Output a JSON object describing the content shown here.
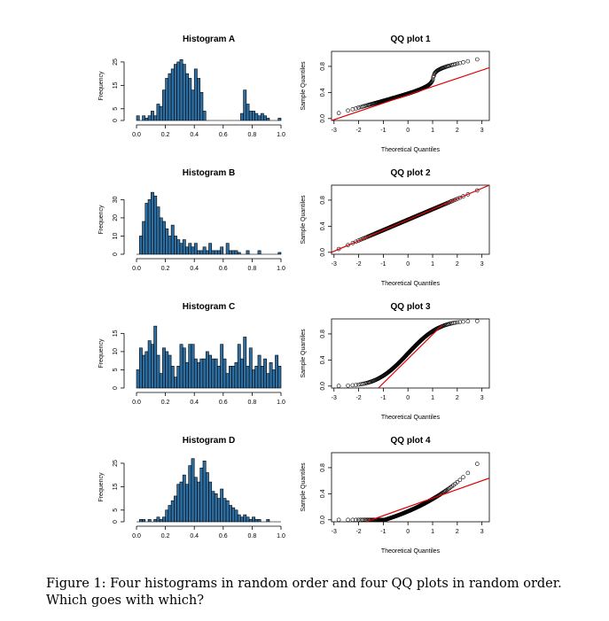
{
  "chart_data": [
    {
      "type": "bar",
      "title": "Histogram A",
      "ylabel": "Frequency",
      "xlim": [
        0,
        1
      ],
      "ylim": [
        0,
        28
      ],
      "xticks": [
        0.0,
        0.2,
        0.4,
        0.6,
        0.8,
        1.0
      ],
      "yticks": [
        0,
        5,
        15,
        25
      ],
      "bin_width": 0.02,
      "values": [
        2,
        0,
        2,
        1,
        2,
        4,
        2,
        7,
        6,
        13,
        18,
        20,
        22,
        24,
        25,
        26,
        24,
        20,
        18,
        13,
        22,
        18,
        12,
        4,
        0,
        0,
        0,
        0,
        0,
        0,
        0,
        0,
        0,
        0,
        0,
        0,
        3,
        13,
        7,
        4,
        4,
        3,
        2,
        3,
        2,
        1,
        0,
        0,
        0,
        1
      ]
    },
    {
      "type": "scatter",
      "title": "QQ plot 1",
      "xlabel": "Theoretical Quantiles",
      "ylabel": "Sample Quantiles",
      "xlim": [
        -3.1,
        3.3
      ],
      "ylim": [
        -0.03,
        1.03
      ],
      "xticks": [
        -3,
        -2,
        -1,
        0,
        1,
        2,
        3
      ],
      "yticks": [
        0.0,
        0.4,
        0.8
      ],
      "ref_line": [
        [
          -3.1,
          -0.03
        ],
        [
          3.3,
          0.78
        ]
      ],
      "distribution": "bimodal"
    },
    {
      "type": "bar",
      "title": "Histogram B",
      "ylabel": "Frequency",
      "xlim": [
        0,
        1
      ],
      "ylim": [
        0,
        36
      ],
      "xticks": [
        0.0,
        0.2,
        0.4,
        0.6,
        0.8,
        1.0
      ],
      "yticks": [
        0,
        10,
        20,
        30
      ],
      "bin_width": 0.02,
      "values": [
        0,
        10,
        18,
        28,
        30,
        34,
        32,
        26,
        20,
        18,
        14,
        10,
        16,
        10,
        8,
        6,
        8,
        4,
        6,
        4,
        6,
        2,
        2,
        4,
        2,
        6,
        2,
        2,
        2,
        4,
        0,
        6,
        2,
        2,
        2,
        1,
        0,
        0,
        2,
        0,
        0,
        0,
        2,
        0,
        0,
        0,
        0,
        0,
        0,
        1
      ]
    },
    {
      "type": "scatter",
      "title": "QQ plot 2",
      "xlabel": "Theoretical Quantiles",
      "ylabel": "Sample Quantiles",
      "xlim": [
        -3.1,
        3.3
      ],
      "ylim": [
        -0.03,
        1.03
      ],
      "xticks": [
        -3,
        -2,
        -1,
        0,
        1,
        2,
        3
      ],
      "yticks": [
        0.0,
        0.4,
        0.8
      ],
      "ref_line": [
        [
          -3.1,
          0.0
        ],
        [
          3.3,
          1.03
        ]
      ],
      "distribution": "normal"
    },
    {
      "type": "bar",
      "title": "Histogram C",
      "ylabel": "Frequency",
      "xlim": [
        0,
        1
      ],
      "ylim": [
        0,
        18
      ],
      "xticks": [
        0.0,
        0.2,
        0.4,
        0.6,
        0.8,
        1.0
      ],
      "yticks": [
        0,
        5,
        10,
        15
      ],
      "bin_width": 0.02,
      "values": [
        5,
        11,
        9,
        10,
        13,
        12,
        17,
        9,
        4,
        11,
        10,
        9,
        6,
        3,
        6,
        12,
        11,
        7,
        12,
        12,
        8,
        7,
        8,
        8,
        10,
        9,
        8,
        8,
        6,
        12,
        8,
        4,
        6,
        6,
        7,
        12,
        8,
        14,
        6,
        11,
        5,
        6,
        9,
        6,
        8,
        4,
        7,
        5,
        9,
        6
      ]
    },
    {
      "type": "scatter",
      "title": "QQ plot 3",
      "xlabel": "Theoretical Quantiles",
      "ylabel": "Sample Quantiles",
      "xlim": [
        -3.1,
        3.3
      ],
      "ylim": [
        -0.03,
        1.03
      ],
      "xticks": [
        -3,
        -2,
        -1,
        0,
        1,
        2,
        3
      ],
      "yticks": [
        0.0,
        0.4,
        0.8
      ],
      "ref_line": [
        [
          -1.2,
          -0.03
        ],
        [
          1.4,
          0.94
        ]
      ],
      "distribution": "uniform"
    },
    {
      "type": "bar",
      "title": "Histogram D",
      "ylabel": "Frequency",
      "xlim": [
        0,
        1
      ],
      "ylim": [
        0,
        28
      ],
      "xticks": [
        0.0,
        0.2,
        0.4,
        0.6,
        0.8,
        1.0
      ],
      "yticks": [
        0,
        5,
        15,
        25
      ],
      "bin_width": 0.02,
      "values": [
        0,
        1,
        1,
        0,
        1,
        0,
        1,
        2,
        1,
        2,
        5,
        7,
        9,
        11,
        16,
        17,
        20,
        16,
        24,
        27,
        19,
        17,
        23,
        26,
        21,
        17,
        13,
        12,
        10,
        14,
        10,
        9,
        7,
        6,
        5,
        3,
        2,
        3,
        2,
        1,
        2,
        1,
        1,
        0,
        0,
        1,
        0,
        0,
        0,
        0
      ]
    },
    {
      "type": "scatter",
      "title": "QQ plot 4",
      "xlabel": "Theoretical Quantiles",
      "ylabel": "Sample Quantiles",
      "xlim": [
        -3.1,
        3.3
      ],
      "ylim": [
        -0.03,
        1.03
      ],
      "xticks": [
        -3,
        -2,
        -1,
        0,
        1,
        2,
        3
      ],
      "yticks": [
        0.0,
        0.4,
        0.8
      ],
      "ref_line": [
        [
          -1.7,
          -0.03
        ],
        [
          3.3,
          0.64
        ]
      ],
      "distribution": "right-skewed"
    }
  ],
  "colors": {
    "bar": "#2e6fa3",
    "qq_line": "#dd0000"
  },
  "caption": "Figure 1:  Four histograms in random order and four QQ plots in random order. Which goes with which?"
}
